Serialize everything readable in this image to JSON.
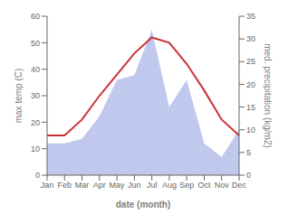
{
  "chart_data": {
    "type": "line",
    "x_label": "date (month)",
    "y_label": "max temp (C)",
    "y2_label": "med. precipitation (kg/m2)",
    "categories": [
      "Jan",
      "Feb",
      "Mar",
      "Apr",
      "May",
      "Jun",
      "Jul",
      "Aug",
      "Sep",
      "Oct",
      "Nov",
      "Dec"
    ],
    "series": [
      {
        "type": "area",
        "axis": "y2",
        "color": "#c0c8ee",
        "values": [
          7,
          7,
          8,
          13,
          21,
          22,
          32,
          15,
          21,
          7,
          4,
          10
        ]
      },
      {
        "type": "line",
        "color": "#cc3333",
        "values": [
          15,
          15,
          21,
          30,
          38,
          46,
          52,
          50,
          42,
          32,
          21,
          15
        ]
      }
    ],
    "ylim": [
      0,
      60
    ],
    "yticks": [
      0,
      10,
      20,
      30,
      40,
      50,
      60
    ],
    "y2lim": [
      0,
      35
    ],
    "y2ticks": [
      0,
      5,
      10,
      15,
      20,
      25,
      30,
      35
    ],
    "grid": false
  }
}
